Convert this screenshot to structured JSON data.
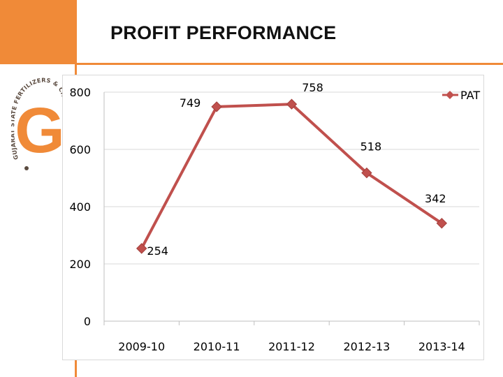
{
  "slide": {
    "title": "PROFIT PERFORMANCE",
    "accent_color": "#f08a38"
  },
  "logo": {
    "letter": "G",
    "ring_text": "GUJARAT STATE FERTILIZERS & CHEMICALS LIMITED",
    "color": "#f08a38"
  },
  "chart_data": {
    "type": "line",
    "title": "",
    "xlabel": "",
    "ylabel": "",
    "categories": [
      "2009-10",
      "2010-11",
      "2011-12",
      "2012-13",
      "2013-14"
    ],
    "series": [
      {
        "name": "PAT",
        "values": [
          254,
          749,
          758,
          518,
          342
        ],
        "color": "#c0504d"
      }
    ],
    "data_labels": [
      "254",
      "749",
      "758",
      "518",
      "342"
    ],
    "yticks": [
      0,
      200,
      400,
      600,
      800
    ],
    "ytick_labels": [
      "0",
      "200",
      "400",
      "600",
      "800"
    ],
    "ylim": [
      0,
      800
    ],
    "grid": true,
    "legend_position": "top-right"
  }
}
